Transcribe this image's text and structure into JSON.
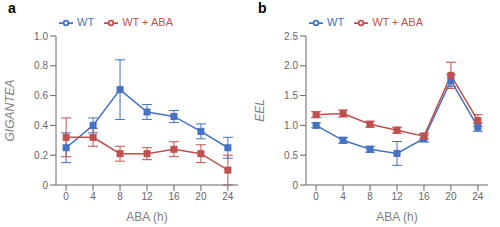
{
  "chart_data": [
    {
      "type": "line",
      "title": "a",
      "xlabel": "ABA (h)",
      "ylabel": "GIGANTEA",
      "x": [
        0,
        4,
        8,
        12,
        16,
        20,
        24
      ],
      "xlim": [
        -1.5,
        25.5
      ],
      "xticks": [
        0,
        4,
        8,
        12,
        16,
        20,
        24
      ],
      "ylim": [
        0,
        1.0
      ],
      "yticks": [
        0,
        0.2,
        0.4,
        0.6,
        0.8,
        {
          "value": 1.0,
          "label": "1.0"
        }
      ],
      "grid": false,
      "legend": "top",
      "marker": "square",
      "series": [
        {
          "name": "WT",
          "color": "#4472c4",
          "values": [
            0.25,
            0.4,
            0.64,
            0.49,
            0.46,
            0.36,
            0.25
          ],
          "error": [
            0.1,
            0.05,
            0.2,
            0.05,
            0.04,
            0.05,
            0.07
          ]
        },
        {
          "name": "WT + ABA",
          "color": "#c0504d",
          "values": [
            0.32,
            0.32,
            0.21,
            0.21,
            0.24,
            0.21,
            0.1
          ],
          "error": [
            0.13,
            0.06,
            0.05,
            0.04,
            0.05,
            0.06,
            0.1
          ]
        }
      ]
    },
    {
      "type": "line",
      "title": "b",
      "xlabel": "ABA (h)",
      "ylabel": "EEL",
      "x": [
        0,
        4,
        8,
        12,
        16,
        20,
        24
      ],
      "xlim": [
        -1.5,
        25.5
      ],
      "xticks": [
        0,
        4,
        8,
        12,
        16,
        20,
        24
      ],
      "ylim": [
        0,
        2.5
      ],
      "yticks": [
        0,
        0.5,
        {
          "value": 1.0,
          "label": "1.0"
        },
        1.5,
        {
          "value": 2.0,
          "label": "2.0"
        },
        2.5
      ],
      "grid": false,
      "legend": "top",
      "marker": "square",
      "series": [
        {
          "name": "WT",
          "color": "#4472c4",
          "values": [
            1.0,
            0.75,
            0.6,
            0.53,
            0.78,
            1.75,
            0.97
          ],
          "error": [
            0.04,
            0.05,
            0.05,
            0.2,
            0.06,
            0.1,
            0.07
          ]
        },
        {
          "name": "WT + ABA",
          "color": "#c0504d",
          "values": [
            1.18,
            1.2,
            1.02,
            0.92,
            0.82,
            1.84,
            1.08
          ],
          "error": [
            0.05,
            0.06,
            0.05,
            0.05,
            0.05,
            0.22,
            0.1
          ]
        }
      ]
    }
  ]
}
